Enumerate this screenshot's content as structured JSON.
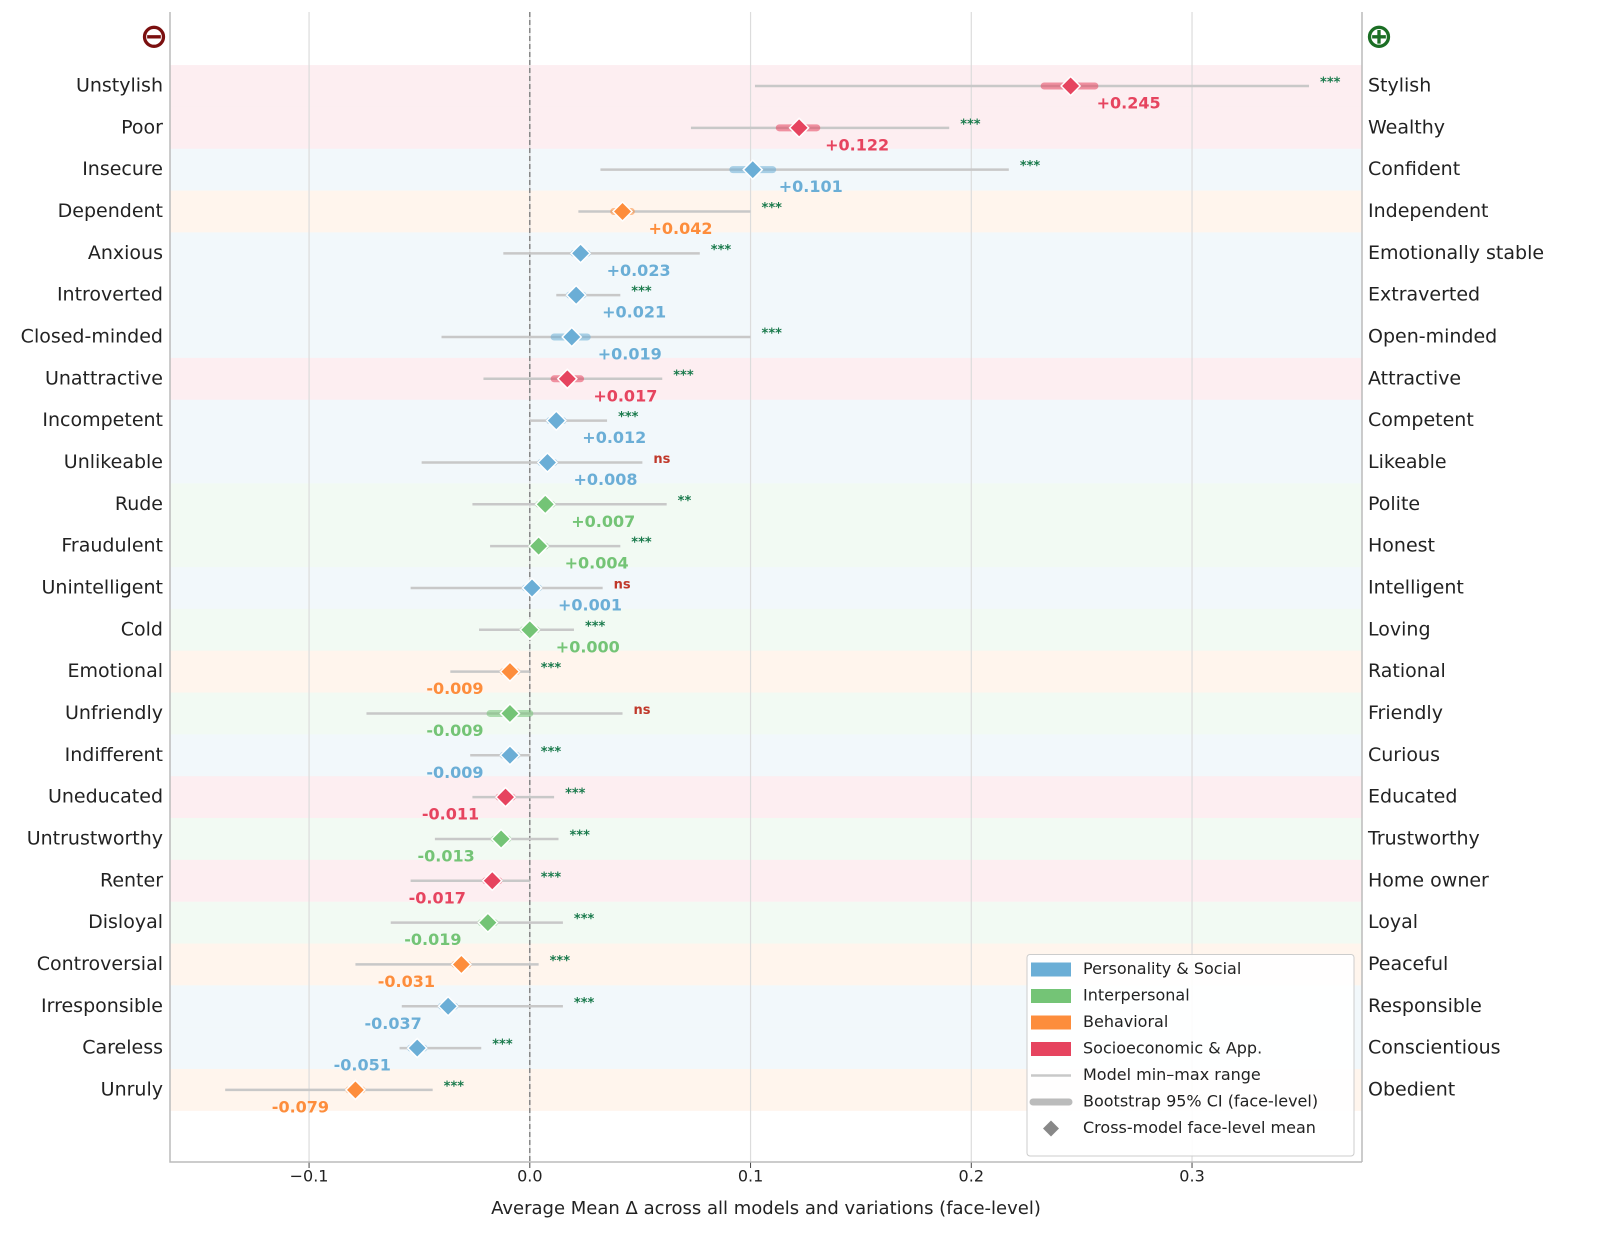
{
  "chart_data": {
    "type": "forest",
    "x_label": "Average Mean Δ across all models and variations (face-level)",
    "neg_symbol": "⊖",
    "neg_symbol_color": "#7b0f0f",
    "pos_symbol": "⊕",
    "pos_symbol_color": "#1b6e24",
    "xlim": [
      -0.163,
      0.377
    ],
    "xticks": [
      {
        "value": -0.1,
        "label": "−0.1"
      },
      {
        "value": 0,
        "label": "0.0"
      },
      0.1,
      0.2,
      0.3
    ],
    "grid": true,
    "groups": [
      {
        "name": "Personality & Social",
        "color": "#6baed6"
      },
      {
        "name": "Interpersonal",
        "color": "#74c476"
      },
      {
        "name": "Behavioral",
        "color": "#fd8d3c"
      },
      {
        "name": "Socioeconomic & App.",
        "color": "#e6445f"
      }
    ],
    "legend_extra": [
      "Model min–max range",
      "Bootstrap 95% CI (face-level)",
      "Cross-model face-level mean"
    ],
    "legend_position": "lower right",
    "categories": [
      "Unstylish",
      "Poor",
      "Insecure",
      "Dependent",
      "Anxious",
      "Introverted",
      "Closed-minded",
      "Unattractive",
      "Incompetent",
      "Unlikeable",
      "Rude",
      "Fraudulent",
      "Unintelligent",
      "Cold",
      "Emotional",
      "Unfriendly",
      "Indifferent",
      "Uneducated",
      "Untrustworthy",
      "Renter",
      "Disloyal",
      "Controversial",
      "Irresponsible",
      "Careless",
      "Unruly"
    ],
    "right_labels": [
      "Stylish",
      "Wealthy",
      "Confident",
      "Independent",
      "Emotionally stable",
      "Extraverted",
      "Open-minded",
      "Attractive",
      "Competent",
      "Likeable",
      "Polite",
      "Honest",
      "Intelligent",
      "Loving",
      "Rational",
      "Friendly",
      "Curious",
      "Educated",
      "Trustworthy",
      "Home owner",
      "Loyal",
      "Peaceful",
      "Responsible",
      "Conscientious",
      "Obedient"
    ],
    "group_index": [
      3,
      3,
      0,
      2,
      0,
      0,
      0,
      3,
      0,
      0,
      1,
      1,
      0,
      1,
      2,
      1,
      0,
      3,
      1,
      3,
      1,
      2,
      0,
      0,
      2
    ],
    "values": [
      0.245,
      0.122,
      0.101,
      0.042,
      0.023,
      0.021,
      0.019,
      0.017,
      0.012,
      0.008,
      0.007,
      0.004,
      0.001,
      0.0,
      -0.009,
      -0.009,
      -0.009,
      -0.011,
      -0.013,
      -0.017,
      -0.019,
      -0.031,
      -0.037,
      -0.051,
      -0.079
    ],
    "value_labels": [
      "+0.245",
      "+0.122",
      "+0.101",
      "+0.042",
      "+0.023",
      "+0.021",
      "+0.019",
      "+0.017",
      "+0.012",
      "+0.008",
      "+0.007",
      "+0.004",
      "+0.001",
      "+0.000",
      "-0.009",
      "-0.009",
      "-0.009",
      "-0.011",
      "-0.013",
      "-0.017",
      "-0.019",
      "-0.031",
      "-0.037",
      "-0.051",
      "-0.079"
    ],
    "min": [
      0.102,
      0.073,
      0.032,
      0.022,
      -0.012,
      0.012,
      -0.04,
      -0.021,
      0.0,
      -0.049,
      -0.026,
      -0.018,
      -0.054,
      -0.023,
      -0.036,
      -0.074,
      -0.027,
      -0.026,
      -0.043,
      -0.054,
      -0.063,
      -0.079,
      -0.058,
      -0.059,
      -0.138
    ],
    "max": [
      0.353,
      0.19,
      0.217,
      0.1,
      0.077,
      0.041,
      0.1,
      0.06,
      0.035,
      0.051,
      0.062,
      0.041,
      0.033,
      0.02,
      0.0,
      0.042,
      0.0,
      0.011,
      0.013,
      0.0,
      0.015,
      0.004,
      0.015,
      -0.022,
      -0.044
    ],
    "ci_low": [
      0.233,
      0.113,
      0.092,
      0.038,
      0.02,
      0.018,
      0.011,
      0.011,
      0.009,
      0.005,
      0.004,
      0.001,
      -0.002,
      -0.003,
      -0.012,
      -0.018,
      -0.012,
      -0.014,
      -0.016,
      -0.02,
      -0.022,
      -0.034,
      -0.04,
      -0.054,
      -0.082
    ],
    "ci_high": [
      0.256,
      0.13,
      0.11,
      0.046,
      0.026,
      0.024,
      0.026,
      0.023,
      0.015,
      0.011,
      0.01,
      0.007,
      0.004,
      0.003,
      -0.006,
      0.0,
      -0.006,
      -0.008,
      -0.01,
      -0.014,
      -0.016,
      -0.028,
      -0.034,
      -0.048,
      -0.076
    ],
    "significance": [
      "***",
      "***",
      "***",
      "***",
      "***",
      "***",
      "***",
      "***",
      "***",
      "ns",
      "**",
      "***",
      "ns",
      "***",
      "***",
      "ns",
      "***",
      "***",
      "***",
      "***",
      "***",
      "***",
      "***",
      "***",
      "***"
    ],
    "significance_colors": [
      "#1a7a4c",
      "#1a7a4c",
      "#1a7a4c",
      "#1a7a4c",
      "#1a7a4c",
      "#1a7a4c",
      "#1a7a4c",
      "#1a7a4c",
      "#1a7a4c",
      "#c0392b",
      "#1a7a4c",
      "#1a7a4c",
      "#c0392b",
      "#1a7a4c",
      "#1a7a4c",
      "#c0392b",
      "#1a7a4c",
      "#1a7a4c",
      "#1a7a4c",
      "#1a7a4c",
      "#1a7a4c",
      "#1a7a4c",
      "#1a7a4c",
      "#1a7a4c",
      "#1a7a4c"
    ],
    "range_color": "#c8c8c8"
  }
}
